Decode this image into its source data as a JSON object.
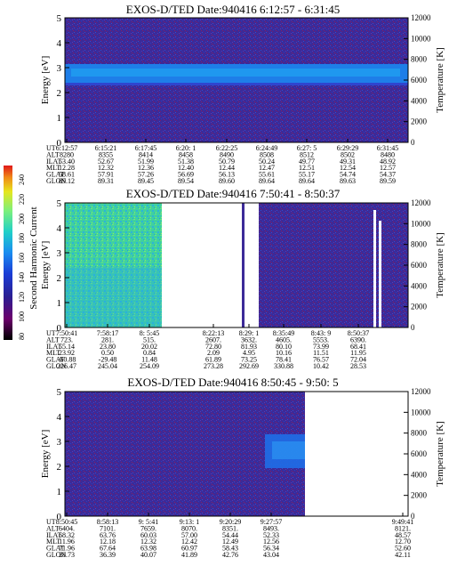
{
  "chart_data": [
    {
      "type": "heatmap",
      "title": "EXOS-D/TED   Date:940416  6:12:57 - 6:31:45",
      "ylabel": "Energy [eV]",
      "y2label": "Temperature [K]",
      "ylim": [
        0,
        5
      ],
      "y2lim": [
        0,
        12000
      ],
      "yticks": [
        "0",
        "1",
        "2",
        "3",
        "4",
        "5"
      ],
      "y2ticks": [
        "0",
        "2000",
        "4000",
        "6000",
        "8000",
        "10000",
        "12000"
      ],
      "bands": [
        {
          "y0": 2.0,
          "y1": 3.2,
          "level": 140,
          "note": "main blue band"
        },
        {
          "y0": 1.75,
          "y1": 2.0,
          "level": 110
        }
      ],
      "table": {
        "rows": [
          "UT",
          "ALT",
          "ILAT",
          "MLT",
          "GLAT",
          "GLON"
        ],
        "cols": [
          [
            "6:12:57",
            "8280",
            "53.40",
            "12.28",
            "58.61",
            "89.12"
          ],
          [
            "6:15:21",
            "8355",
            "52.67",
            "12.32",
            "57.91",
            "89.31"
          ],
          [
            "6:17:45",
            "8414",
            "51.99",
            "12.36",
            "57.26",
            "89.45"
          ],
          [
            "6:20: 1",
            "8458",
            "51.38",
            "12.40",
            "56.69",
            "89.54"
          ],
          [
            "6:22:25",
            "8490",
            "50.79",
            "12.44",
            "56.13",
            "89.60"
          ],
          [
            "6:24:49",
            "8508",
            "50.24",
            "12.47",
            "55.61",
            "89.64"
          ],
          [
            "6:27: 5",
            "8512",
            "49.77",
            "12.51",
            "55.17",
            "89.64"
          ],
          [
            "6:29:29",
            "8502",
            "49.31",
            "12.54",
            "54.74",
            "89.63"
          ],
          [
            "6:31:45",
            "8480",
            "48.92",
            "12.57",
            "54.37",
            "89.59"
          ]
        ]
      }
    },
    {
      "type": "heatmap",
      "title": "EXOS-D/TED   Date:940416  7:50:41 - 8:50:37",
      "ylabel": "Energy [eV]",
      "y2label": "Temperature [K]",
      "ylim": [
        0,
        5
      ],
      "y2lim": [
        0,
        12000
      ],
      "yticks": [
        "0",
        "1",
        "2",
        "3",
        "4",
        "5"
      ],
      "y2ticks": [
        "0",
        "2000",
        "4000",
        "6000",
        "8000",
        "10000",
        "12000"
      ],
      "segments": [
        {
          "from": "7:50:41",
          "to": "8: 5:45",
          "fraction": [
            0.0,
            0.28
          ],
          "level": 170
        },
        {
          "from": "8:22:13",
          "fraction": [
            0.515,
            0.52
          ],
          "level": 100
        },
        {
          "from": "8:23",
          "to": "8:50:37",
          "fraction": [
            0.565,
            1.0
          ],
          "level": 100
        }
      ],
      "temperature_markers": [
        {
          "fraction": 0.915,
          "y0": 11000,
          "y1": 0
        },
        {
          "fraction": 0.93,
          "y0": 10000,
          "y1": 1000
        }
      ],
      "table": {
        "rows": [
          "UT",
          "ALT",
          "ILAT",
          "MLT",
          "GLAT",
          "GLON"
        ],
        "cols": [
          [
            "7:50:41",
            "723.",
            "55.14",
            "23.92",
            "-60.88",
            "226.47"
          ],
          [
            "7:58:17",
            "281.",
            "23.80",
            "0.50",
            "-29.48",
            "245.04"
          ],
          [
            "8: 5:45",
            "515.",
            "20.02",
            "0.84",
            "11.48",
            "254.09"
          ],
          [
            "8:22:13",
            "2607.",
            "72.80",
            "2.09",
            "61.89",
            "273.28"
          ],
          [
            "8:29: 1",
            "3632.",
            "81.93",
            "4.95",
            "73.25",
            "292.69"
          ],
          [
            "8:35:49",
            "4605.",
            "80.10",
            "10.16",
            "78.41",
            "330.88"
          ],
          [
            "8:43: 9",
            "5553.",
            "73.99",
            "11.51",
            "76.57",
            "10.42"
          ],
          [
            "8:50:37",
            "6390.",
            "68.41",
            "11.95",
            "72.04",
            "28.53"
          ]
        ]
      }
    },
    {
      "type": "heatmap",
      "title": "EXOS-D/TED   Date:940416  8:50:45 - 9:50: 5",
      "ylabel": "Energy [eV]",
      "y2label": "Temperature [K]",
      "ylim": [
        0,
        5
      ],
      "y2lim": [
        0,
        12000
      ],
      "yticks": [
        "0",
        "1",
        "2",
        "3",
        "4",
        "5"
      ],
      "y2ticks": [
        "0",
        "2000",
        "4000",
        "6000",
        "8000",
        "10000",
        "12000"
      ],
      "segments": [
        {
          "from": "8:50:45",
          "to": "9:27:57",
          "fraction": [
            0.0,
            0.7
          ],
          "level": 100
        }
      ],
      "blob": {
        "fraction": [
          0.6,
          0.72
        ],
        "y0": 2.3,
        "y1": 3.7,
        "level": 150
      },
      "table": {
        "rows": [
          "UT",
          "ALT",
          "ILAT",
          "MLT",
          "GLAT",
          "GLON"
        ],
        "cols": [
          [
            "8:50:45",
            "6404.",
            "68.32",
            "11.96",
            "71.96",
            "28.73"
          ],
          [
            "8:58:13",
            "7101.",
            "63.76",
            "12.18",
            "67.64",
            "36.39"
          ],
          [
            "9: 5:41",
            "7659.",
            "60.03",
            "12.32",
            "63.98",
            "40.07"
          ],
          [
            "9:13: 1",
            "8070.",
            "57.00",
            "12.42",
            "60.97",
            "41.89"
          ],
          [
            "9:20:29",
            "8351.",
            "54.44",
            "12.49",
            "58.43",
            "42.76"
          ],
          [
            "9:27:57",
            "8493.",
            "52.33",
            "12.56",
            "56.34",
            "43.04"
          ],
          [
            "9:49:41",
            "8121.",
            "48.57",
            "12.70",
            "52.60",
            "42.11"
          ]
        ]
      }
    }
  ],
  "colorbar": {
    "label": "Second Harmonic Current",
    "ticks": [
      "80",
      "100",
      "120",
      "140",
      "160",
      "180",
      "200",
      "220",
      "240"
    ],
    "colors": [
      "#000000",
      "#6c006c",
      "#2a1f93",
      "#1a3cd6",
      "#1a8cf0",
      "#20d0c8",
      "#7cf07c",
      "#e6e61e",
      "#f08c18",
      "#e01818"
    ]
  }
}
